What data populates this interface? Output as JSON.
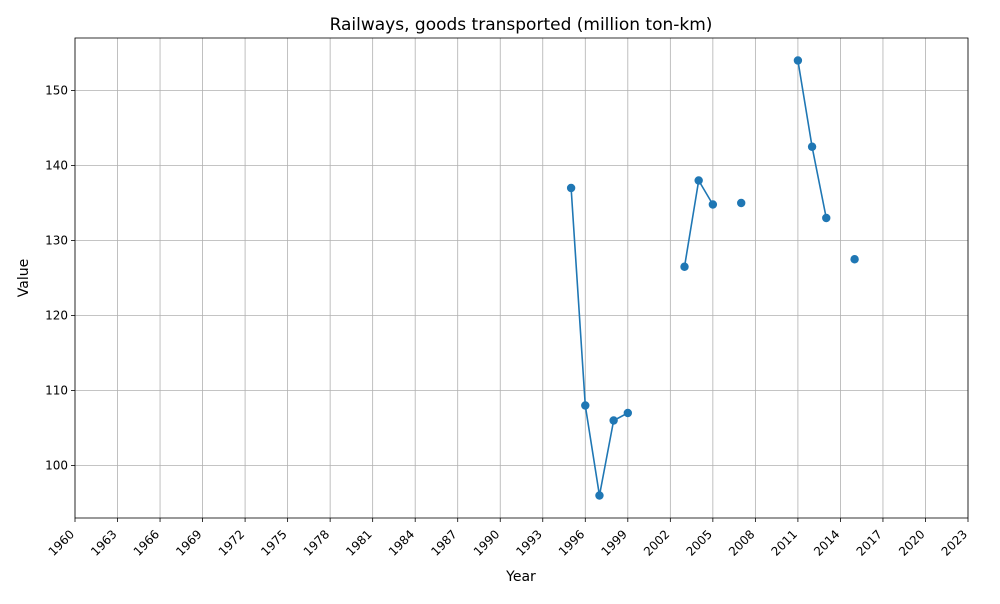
{
  "chart_data": {
    "type": "line",
    "title": "Railways, goods transported (million ton-km)",
    "xlabel": "Year",
    "ylabel": "Value",
    "xlim": [
      1960,
      2023
    ],
    "ylim": [
      93,
      157
    ],
    "x_ticks": [
      1960,
      1963,
      1966,
      1969,
      1972,
      1975,
      1978,
      1981,
      1984,
      1987,
      1990,
      1993,
      1996,
      1999,
      2002,
      2005,
      2008,
      2011,
      2014,
      2017,
      2020,
      2023
    ],
    "y_ticks": [
      100,
      110,
      120,
      130,
      140,
      150
    ],
    "grid": true,
    "legend": "none",
    "series": [
      {
        "color": "#1f77b4",
        "points": [
          {
            "x": 1995,
            "y": 137.0
          },
          {
            "x": 1996,
            "y": 108.0
          },
          {
            "x": 1997,
            "y": 96.0
          },
          {
            "x": 1998,
            "y": 106.0
          },
          {
            "x": 1999,
            "y": 107.0
          },
          {
            "x": 2000,
            "y": null
          },
          {
            "x": 2001,
            "y": null
          },
          {
            "x": 2002,
            "y": null
          },
          {
            "x": 2003,
            "y": 126.5
          },
          {
            "x": 2004,
            "y": 138.0
          },
          {
            "x": 2005,
            "y": 134.8
          },
          {
            "x": 2006,
            "y": null
          },
          {
            "x": 2007,
            "y": 135.0
          },
          {
            "x": 2008,
            "y": null
          },
          {
            "x": 2009,
            "y": null
          },
          {
            "x": 2010,
            "y": null
          },
          {
            "x": 2011,
            "y": 154.0
          },
          {
            "x": 2012,
            "y": 142.5
          },
          {
            "x": 2013,
            "y": 133.0
          },
          {
            "x": 2014,
            "y": null
          },
          {
            "x": 2015,
            "y": 127.5
          }
        ]
      }
    ]
  }
}
